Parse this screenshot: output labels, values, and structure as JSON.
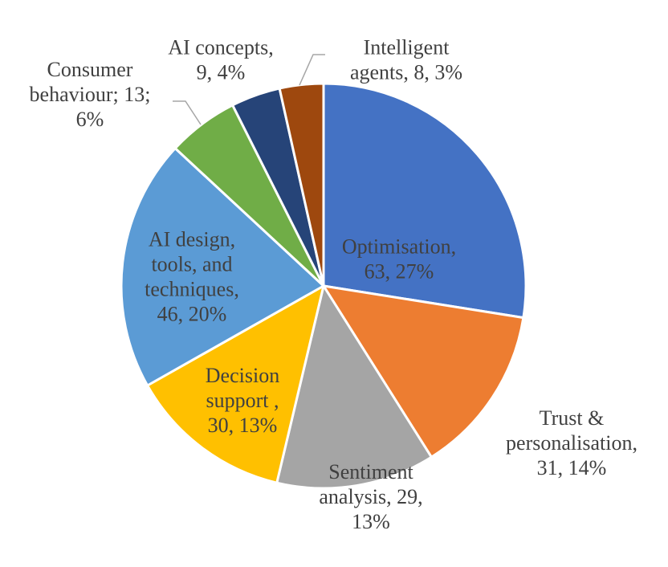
{
  "chart_data": {
    "type": "pie",
    "title": "",
    "slices": [
      {
        "name": "Optimisation",
        "value": 63,
        "percent": 27,
        "color": "#4472C4",
        "label_lines": [
          "Optimisation,",
          "63, 27%"
        ],
        "label_color": "#404040"
      },
      {
        "name": "Trust & personalisation",
        "value": 31,
        "percent": 14,
        "color": "#ED7D31",
        "label_lines": [
          "Trust &",
          "personalisation,",
          "31, 14%"
        ],
        "label_color": "#404040"
      },
      {
        "name": "Sentiment analysis",
        "value": 29,
        "percent": 13,
        "color": "#A5A5A5",
        "label_lines": [
          "Sentiment",
          "analysis, 29,",
          "13%"
        ],
        "label_color": "#404040"
      },
      {
        "name": "Decision support",
        "value": 30,
        "percent": 13,
        "color": "#FFC000",
        "label_lines": [
          "Decision",
          "support ,",
          "30, 13%"
        ],
        "label_color": "#404040"
      },
      {
        "name": "AI design, tools, and techniques",
        "value": 46,
        "percent": 20,
        "color": "#5B9BD5",
        "label_lines": [
          "AI design,",
          "tools, and",
          "techniques,",
          "46, 20%"
        ],
        "label_color": "#404040"
      },
      {
        "name": "Consumer behaviour",
        "value": 13,
        "percent": 6,
        "color": "#70AD47",
        "label_lines": [
          "Consumer",
          "behaviour; 13;",
          "6%"
        ],
        "label_color": "#404040"
      },
      {
        "name": "AI concepts",
        "value": 9,
        "percent": 4,
        "color": "#264478",
        "label_lines": [
          "AI concepts,",
          "9, 4%"
        ],
        "label_color": "#404040"
      },
      {
        "name": "Intelligent agents",
        "value": 8,
        "percent": 3,
        "color": "#9E480E",
        "label_lines": [
          "Intelligent",
          "agents, 8, 3%"
        ],
        "label_color": "#404040"
      }
    ],
    "start_angle_deg": 0,
    "direction": "clockwise",
    "legend": "none"
  }
}
